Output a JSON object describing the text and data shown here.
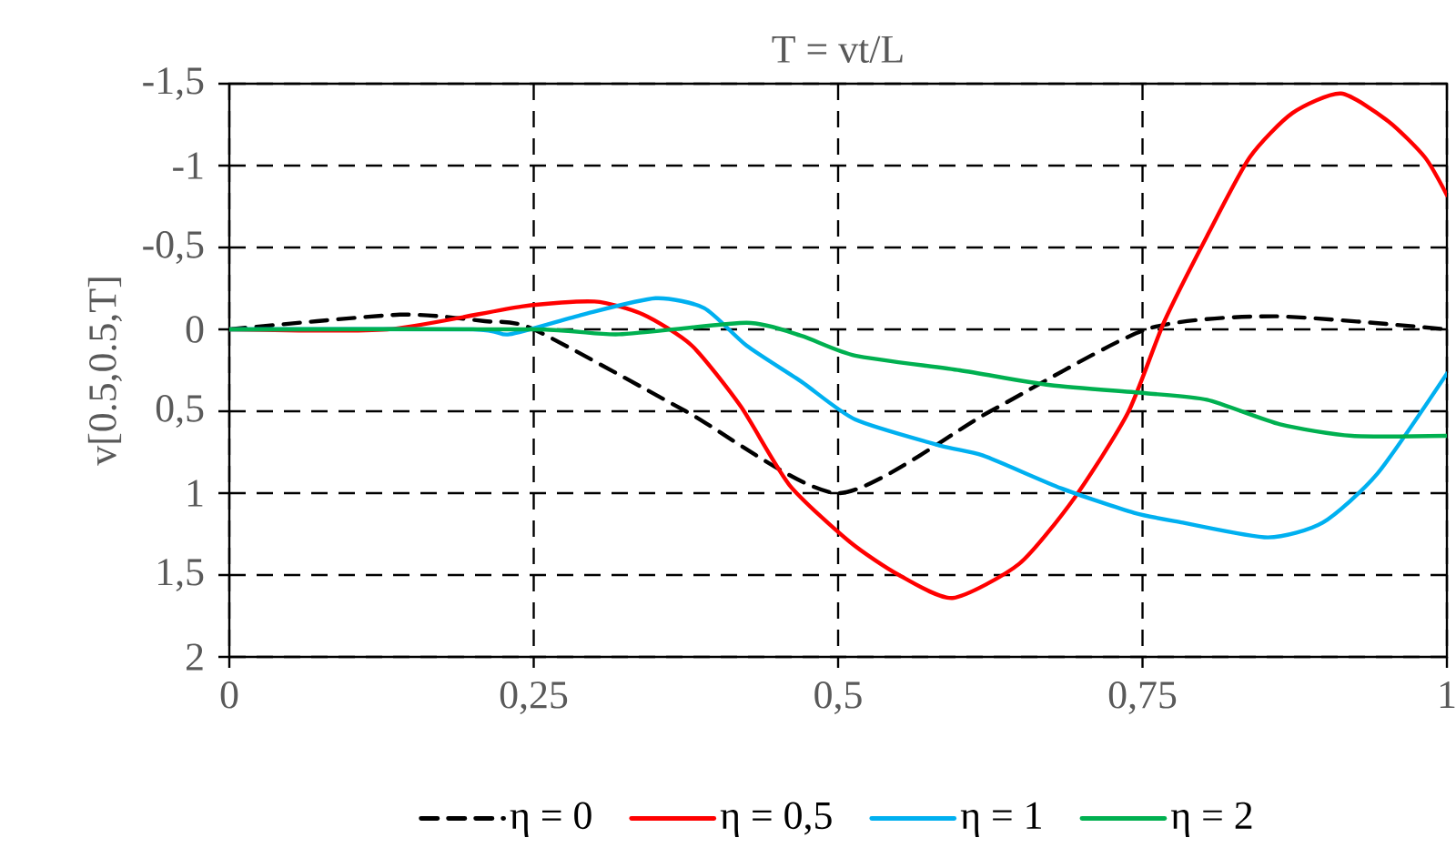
{
  "chart_data": {
    "type": "line",
    "title": "T = vt/L",
    "ylabel": "v[0.5,0.5,T]",
    "xlim": [
      0,
      1
    ],
    "xticks": [
      {
        "value": 0,
        "label": "0"
      },
      {
        "value": 0.25,
        "label": "0,25"
      },
      {
        "value": 0.5,
        "label": "0,5"
      },
      {
        "value": 0.75,
        "label": "0,75"
      },
      {
        "value": 1,
        "label": "1"
      }
    ],
    "ylim": [
      2,
      -1.5
    ],
    "yticks": [
      {
        "value": -1.5,
        "label": "-1,5"
      },
      {
        "value": -1,
        "label": "-1"
      },
      {
        "value": -0.5,
        "label": "-0,5"
      },
      {
        "value": 0,
        "label": "0"
      },
      {
        "value": 0.5,
        "label": "0,5"
      },
      {
        "value": 1,
        "label": "1"
      },
      {
        "value": 1.5,
        "label": "1,5"
      },
      {
        "value": 2,
        "label": "2"
      }
    ],
    "grid": true,
    "legend": "bottom",
    "series": [
      {
        "name": "η = 0",
        "color": "#000000",
        "line_style": "dashed",
        "x": [
          0,
          0.14,
          0.21,
          0.25,
          0.375,
          0.5,
          0.625,
          0.753,
          0.858,
          1
        ],
        "values": [
          0,
          -0.09,
          -0.05,
          0,
          0.5,
          1.0,
          0.5,
          0,
          -0.08,
          0
        ]
      },
      {
        "name": "η = 0,5",
        "color": "#ff0000",
        "x": [
          0,
          0.13,
          0.24,
          0.3,
          0.34,
          0.38,
          0.42,
          0.46,
          0.51,
          0.55,
          0.594,
          0.649,
          0.694,
          0.738,
          0.768,
          0.803,
          0.838,
          0.873,
          0.913,
          0.952,
          0.982,
          1
        ],
        "values": [
          0,
          0,
          -0.14,
          -0.17,
          -0.09,
          0.1,
          0.47,
          0.95,
          1.3,
          1.5,
          1.64,
          1.43,
          1.03,
          0.51,
          -0.05,
          -0.57,
          -1.05,
          -1.32,
          -1.44,
          -1.27,
          -1.05,
          -0.82
        ]
      },
      {
        "name": "η = 1",
        "color": "#00b0f0",
        "x": [
          0,
          0.2,
          0.23,
          0.29,
          0.35,
          0.39,
          0.425,
          0.47,
          0.514,
          0.584,
          0.619,
          0.683,
          0.743,
          0.783,
          0.853,
          0.898,
          0.943,
          1
        ],
        "values": [
          0,
          0,
          0.03,
          -0.09,
          -0.19,
          -0.13,
          0.1,
          0.32,
          0.55,
          0.71,
          0.77,
          0.97,
          1.12,
          1.18,
          1.27,
          1.18,
          0.88,
          0.27
        ]
      },
      {
        "name": "η = 2",
        "color": "#00b050",
        "x": [
          0,
          0.25,
          0.32,
          0.425,
          0.47,
          0.514,
          0.6,
          0.674,
          0.753,
          0.803,
          0.863,
          0.922,
          1
        ],
        "values": [
          0,
          0,
          0.03,
          -0.04,
          0.04,
          0.16,
          0.25,
          0.34,
          0.39,
          0.43,
          0.58,
          0.65,
          0.65
        ]
      }
    ]
  }
}
